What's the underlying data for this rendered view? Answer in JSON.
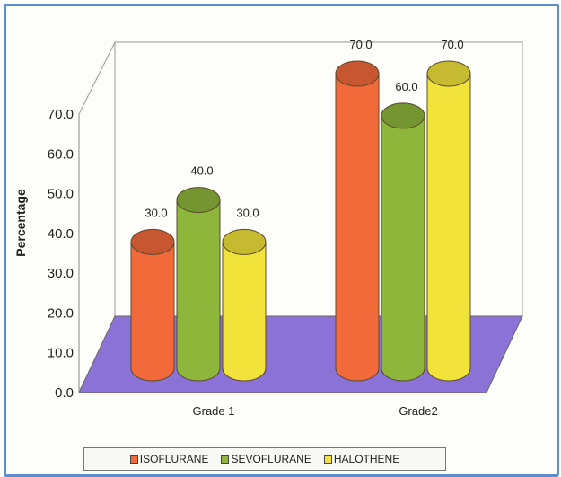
{
  "chart_data": {
    "type": "bar",
    "style": "3d-cylinder",
    "categories": [
      "Grade 1",
      "Grade2"
    ],
    "series": [
      {
        "name": "ISOFLURANE",
        "color": "#f26a3a",
        "values": [
          30.0,
          70.0
        ]
      },
      {
        "name": "SEVOFLURANE",
        "color": "#8db63a",
        "values": [
          40.0,
          60.0
        ]
      },
      {
        "name": "HALOTHENE",
        "color": "#f2e33a",
        "values": [
          30.0,
          70.0
        ]
      }
    ],
    "ylabel": "Percentage",
    "xlabel": "",
    "ylim": [
      0,
      70
    ],
    "yticks": [
      "0.0",
      "10.0",
      "20.0",
      "30.0",
      "40.0",
      "50.0",
      "60.0",
      "70.0"
    ],
    "data_labels": [
      [
        "30.0",
        "70.0"
      ],
      [
        "40.0",
        "60.0"
      ],
      [
        "30.0",
        "70.0"
      ]
    ],
    "floor_color": "#8a72d6",
    "legend_position": "bottom",
    "grid": false
  }
}
